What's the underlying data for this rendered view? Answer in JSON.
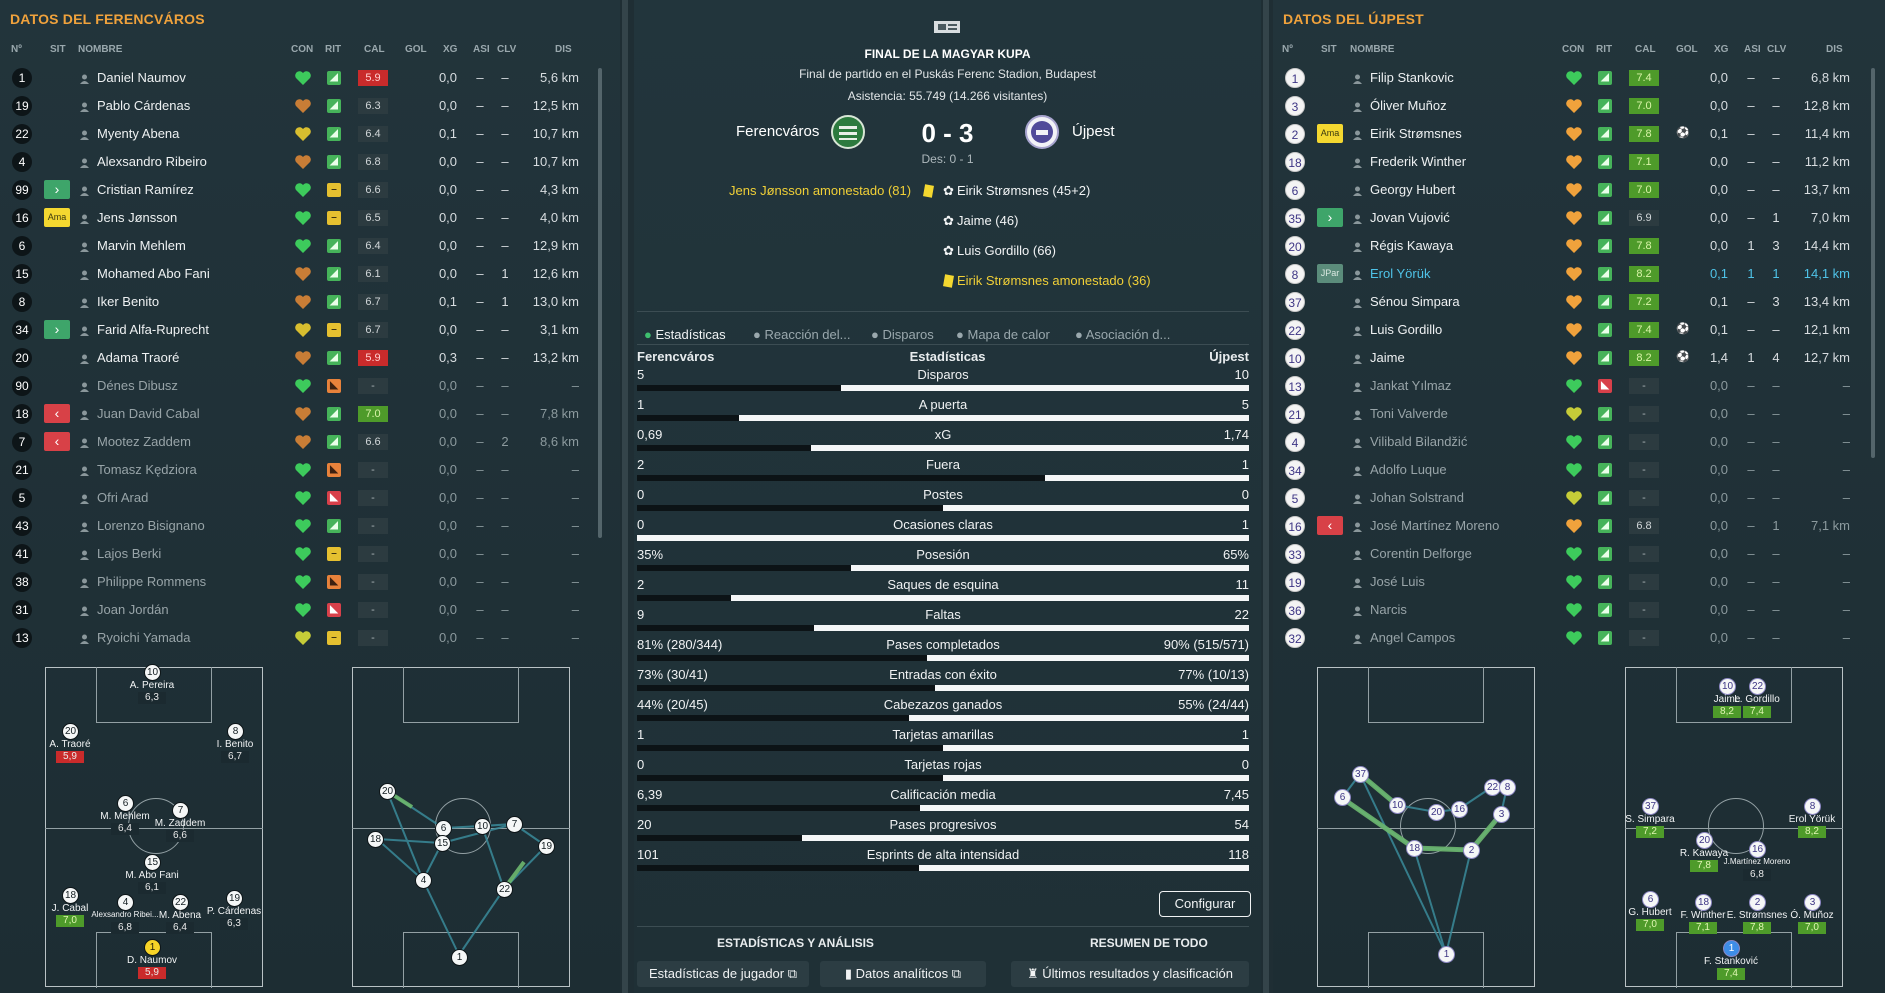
{
  "left": {
    "title": "DATOS DEL FERENCVÁROS",
    "headers": {
      "num": "Nº",
      "sit": "SIT",
      "name": "NOMBRE",
      "con": "CON",
      "rit": "RIT",
      "cal": "CAL",
      "gol": "GOL",
      "xg": "XG",
      "asi": "ASI",
      "clv": "CLV",
      "dis": "DIS"
    },
    "players": [
      {
        "num": "1",
        "name": "Daniel Naumov",
        "cal": "5.9",
        "xg": "0,0",
        "asi": "–",
        "clv": "–",
        "dis": "5,6 km"
      },
      {
        "num": "19",
        "name": "Pablo Cárdenas",
        "cal": "6.3",
        "xg": "0,0",
        "asi": "–",
        "clv": "–",
        "dis": "12,5 km"
      },
      {
        "num": "22",
        "name": "Myenty Abena",
        "cal": "6.4",
        "xg": "0,1",
        "asi": "–",
        "clv": "–",
        "dis": "10,7 km"
      },
      {
        "num": "4",
        "name": "Alexsandro Ribeiro",
        "cal": "6.8",
        "xg": "0,0",
        "asi": "–",
        "clv": "–",
        "dis": "10,7 km"
      },
      {
        "num": "99",
        "sit": "›",
        "name": "Cristian Ramírez",
        "cal": "6.6",
        "xg": "0,0",
        "asi": "–",
        "clv": "–",
        "dis": "4,3 km"
      },
      {
        "num": "16",
        "sit": "Ama",
        "name": "Jens Jønsson",
        "cal": "6.5",
        "xg": "0,0",
        "asi": "–",
        "clv": "–",
        "dis": "4,0 km"
      },
      {
        "num": "6",
        "name": "Marvin Mehlem",
        "cal": "6.4",
        "xg": "0,0",
        "asi": "–",
        "clv": "–",
        "dis": "12,9 km"
      },
      {
        "num": "15",
        "name": "Mohamed Abo Fani",
        "cal": "6.1",
        "xg": "0,0",
        "asi": "–",
        "clv": "1",
        "dis": "12,6 km"
      },
      {
        "num": "8",
        "name": "Iker Benito",
        "cal": "6.7",
        "xg": "0,1",
        "asi": "–",
        "clv": "1",
        "dis": "13,0 km"
      },
      {
        "num": "34",
        "sit": "›",
        "name": "Farid Alfa-Ruprecht",
        "cal": "6.7",
        "xg": "0,0",
        "asi": "–",
        "clv": "–",
        "dis": "3,1 km"
      },
      {
        "num": "20",
        "name": "Adama Traoré",
        "cal": "5.9",
        "xg": "0,3",
        "asi": "–",
        "clv": "–",
        "dis": "13,2 km"
      },
      {
        "num": "90",
        "name": "Dénes Dibusz",
        "cal": "-",
        "xg": "0,0",
        "asi": "–",
        "clv": "–",
        "dis": "–"
      },
      {
        "num": "18",
        "sit": "‹",
        "name": "Juan David Cabal",
        "cal": "7.0",
        "xg": "0,0",
        "asi": "–",
        "clv": "–",
        "dis": "7,8 km"
      },
      {
        "num": "7",
        "sit": "‹",
        "name": "Mootez Zaddem",
        "cal": "6.6",
        "xg": "0,0",
        "asi": "–",
        "clv": "2",
        "dis": "8,6 km"
      },
      {
        "num": "21",
        "name": "Tomasz Kędziora",
        "cal": "-",
        "xg": "0,0",
        "asi": "–",
        "clv": "–",
        "dis": "–"
      },
      {
        "num": "5",
        "name": "Ofri Arad",
        "cal": "-",
        "xg": "0,0",
        "asi": "–",
        "clv": "–",
        "dis": "–"
      },
      {
        "num": "43",
        "name": "Lorenzo Bisignano",
        "cal": "-",
        "xg": "0,0",
        "asi": "–",
        "clv": "–",
        "dis": "–"
      },
      {
        "num": "41",
        "name": "Lajos Berki",
        "cal": "-",
        "xg": "0,0",
        "asi": "–",
        "clv": "–",
        "dis": "–"
      },
      {
        "num": "38",
        "name": "Philippe Rommens",
        "cal": "-",
        "xg": "0,0",
        "asi": "–",
        "clv": "–",
        "dis": "–"
      },
      {
        "num": "31",
        "name": "Joan Jordán",
        "cal": "-",
        "xg": "0,0",
        "asi": "–",
        "clv": "–",
        "dis": "–"
      },
      {
        "num": "13",
        "name": "Ryoichi Yamada",
        "cal": "-",
        "xg": "0,0",
        "asi": "–",
        "clv": "–",
        "dis": "–"
      }
    ],
    "pitch": [
      {
        "num": "10",
        "name": "A. Pereira",
        "rate": "6,3"
      },
      {
        "num": "20",
        "name": "A. Traoré",
        "rate": "5,9"
      },
      {
        "num": "8",
        "name": "I. Benito",
        "rate": "6,7"
      },
      {
        "num": "6",
        "name": "M. Mehlem",
        "rate": "6,4"
      },
      {
        "num": "7",
        "name": "M. Zaddem",
        "rate": "6,6"
      },
      {
        "num": "15",
        "name": "M. Abo Fani",
        "rate": "6,1"
      },
      {
        "num": "18",
        "name": "J. Cabal",
        "rate": "7,0"
      },
      {
        "num": "4",
        "name": "Alexsandro Ribei...",
        "rate": "6,8"
      },
      {
        "num": "22",
        "name": "M. Abena",
        "rate": "6,4"
      },
      {
        "num": "19",
        "name": "P. Cárdenas",
        "rate": "6,3"
      },
      {
        "num": "1",
        "name": "D. Naumov",
        "rate": "5,9"
      }
    ]
  },
  "right": {
    "title": "DATOS DEL ÚJPEST",
    "players": [
      {
        "num": "1",
        "name": "Filip Stankovic",
        "cal": "7.4",
        "gol": "",
        "xg": "0,0",
        "asi": "–",
        "clv": "–",
        "dis": "6,8 km"
      },
      {
        "num": "3",
        "name": "Óliver Muñoz",
        "cal": "7.0",
        "gol": "",
        "xg": "0,0",
        "asi": "–",
        "clv": "–",
        "dis": "12,8 km"
      },
      {
        "num": "2",
        "sit": "Ama",
        "name": "Eirik Strømsnes",
        "cal": "7.8",
        "gol": "⚽",
        "xg": "0,1",
        "asi": "–",
        "clv": "–",
        "dis": "11,4 km"
      },
      {
        "num": "18",
        "name": "Frederik Winther",
        "cal": "7.1",
        "gol": "",
        "xg": "0,0",
        "asi": "–",
        "clv": "–",
        "dis": "11,2 km"
      },
      {
        "num": "6",
        "name": "Georgy Hubert",
        "cal": "7.0",
        "gol": "",
        "xg": "0,0",
        "asi": "–",
        "clv": "–",
        "dis": "13,7 km"
      },
      {
        "num": "35",
        "sit": "›",
        "name": "Jovan Vujović",
        "cal": "6.9",
        "gol": "",
        "xg": "0,0",
        "asi": "–",
        "clv": "1",
        "dis": "7,0 km"
      },
      {
        "num": "20",
        "name": "Régis Kawaya",
        "cal": "7.8",
        "gol": "",
        "xg": "0,0",
        "asi": "1",
        "clv": "3",
        "dis": "14,4 km"
      },
      {
        "num": "8",
        "sit": "JPar",
        "name": "Erol Yörük",
        "cal": "8.2",
        "gol": "",
        "xg": "0,1",
        "asi": "1",
        "clv": "1",
        "dis": "14,1 km"
      },
      {
        "num": "37",
        "name": "Sénou Simpara",
        "cal": "7.2",
        "gol": "",
        "xg": "0,1",
        "asi": "–",
        "clv": "3",
        "dis": "13,4 km"
      },
      {
        "num": "22",
        "name": "Luis Gordillo",
        "cal": "7.4",
        "gol": "⚽",
        "xg": "0,1",
        "asi": "–",
        "clv": "–",
        "dis": "12,1 km"
      },
      {
        "num": "10",
        "name": "Jaime",
        "cal": "8.2",
        "gol": "⚽",
        "xg": "1,4",
        "asi": "1",
        "clv": "4",
        "dis": "12,7 km"
      },
      {
        "num": "13",
        "name": "Jankat Yılmaz",
        "cal": "-",
        "gol": "",
        "xg": "0,0",
        "asi": "–",
        "clv": "–",
        "dis": "–"
      },
      {
        "num": "21",
        "name": "Toni Valverde",
        "cal": "-",
        "gol": "",
        "xg": "0,0",
        "asi": "–",
        "clv": "–",
        "dis": "–"
      },
      {
        "num": "4",
        "name": "Vilibald Bilandžić",
        "cal": "-",
        "gol": "",
        "xg": "0,0",
        "asi": "–",
        "clv": "–",
        "dis": "–"
      },
      {
        "num": "34",
        "name": "Adolfo Luque",
        "cal": "-",
        "gol": "",
        "xg": "0,0",
        "asi": "–",
        "clv": "–",
        "dis": "–"
      },
      {
        "num": "5",
        "name": "Johan Solstrand",
        "cal": "-",
        "gol": "",
        "xg": "0,0",
        "asi": "–",
        "clv": "–",
        "dis": "–"
      },
      {
        "num": "16",
        "sit": "‹",
        "name": "José Martínez Moreno",
        "cal": "6.8",
        "gol": "",
        "xg": "0,0",
        "asi": "–",
        "clv": "1",
        "dis": "7,1 km"
      },
      {
        "num": "33",
        "name": "Corentin Delforge",
        "cal": "-",
        "gol": "",
        "xg": "0,0",
        "asi": "–",
        "clv": "–",
        "dis": "–"
      },
      {
        "num": "19",
        "name": "José Luis",
        "cal": "-",
        "gol": "",
        "xg": "0,0",
        "asi": "–",
        "clv": "–",
        "dis": "–"
      },
      {
        "num": "36",
        "name": "Narcis",
        "cal": "-",
        "gol": "",
        "xg": "0,0",
        "asi": "–",
        "clv": "–",
        "dis": "–"
      },
      {
        "num": "32",
        "name": "Angel Campos",
        "cal": "-",
        "gol": "",
        "xg": "0,0",
        "asi": "–",
        "clv": "–",
        "dis": "–"
      }
    ],
    "pitch": [
      {
        "num": "10",
        "name": "Jaime",
        "rate": "8,2"
      },
      {
        "num": "22",
        "name": "L. Gordillo",
        "rate": "7,4"
      },
      {
        "num": "37",
        "name": "S. Simpara",
        "rate": "7,2"
      },
      {
        "num": "8",
        "name": "Erol Yörük",
        "rate": "8,2"
      },
      {
        "num": "20",
        "name": "R. Kawaya",
        "rate": "7,8"
      },
      {
        "num": "16",
        "name": "J.Martínez Moreno",
        "rate": "6,8"
      },
      {
        "num": "6",
        "name": "G. Hubert",
        "rate": "7,0"
      },
      {
        "num": "18",
        "name": "F. Winther",
        "rate": "7,1"
      },
      {
        "num": "2",
        "name": "E. Strømsnes",
        "rate": "7,8"
      },
      {
        "num": "3",
        "name": "Ó. Muñoz",
        "rate": "7,0"
      },
      {
        "num": "1",
        "name": "F. Stanković",
        "rate": "7,4"
      }
    ]
  },
  "center": {
    "title": "FINAL DE LA MAGYAR KUPA",
    "subtitle": "Final de partido en el Puskás Ferenc Stadion, Budapest",
    "attendance": "Asistencia: 55.749 (14.266 visitantes)",
    "home": "Ferencváros",
    "away": "Újpest",
    "score": "0 - 3",
    "ht": "Des: 0 - 1",
    "home_events": [
      "Jens Jønsson amonestado (81)"
    ],
    "away_events": [
      "Eirik Strømsnes (45+2)",
      "Jaime (46)",
      "Luis Gordillo (66)",
      "Eirik Strømsnes amonestado (36)"
    ],
    "tabs": [
      "Estadísticas",
      "Reacción del...",
      "Disparos",
      "Mapa de calor",
      "Asociación d..."
    ],
    "stats_header": {
      "home": "Ferencváros",
      "mid": "Estadísticas",
      "away": "Újpest"
    },
    "stats": [
      {
        "label": "Disparos",
        "home": "5",
        "away": "10",
        "home_share": 0.333
      },
      {
        "label": "A puerta",
        "home": "1",
        "away": "5",
        "home_share": 0.167
      },
      {
        "label": "xG",
        "home": "0,69",
        "away": "1,74",
        "home_share": 0.284
      },
      {
        "label": "Fuera",
        "home": "2",
        "away": "1",
        "home_share": 0.667
      },
      {
        "label": "Postes",
        "home": "0",
        "away": "0",
        "home_share": 0.5
      },
      {
        "label": "Ocasiones claras",
        "home": "0",
        "away": "1",
        "home_share": 0.0
      },
      {
        "label": "Posesión",
        "home": "35%",
        "away": "65%",
        "home_share": 0.35
      },
      {
        "label": "Saques de esquina",
        "home": "2",
        "away": "11",
        "home_share": 0.154
      },
      {
        "label": "Faltas",
        "home": "9",
        "away": "22",
        "home_share": 0.29
      },
      {
        "label": "Pases completados",
        "home": "81% (280/344)",
        "away": "90% (515/571)",
        "home_share": 0.474
      },
      {
        "label": "Entradas con éxito",
        "home": "73% (30/41)",
        "away": "77% (10/13)",
        "home_share": 0.487
      },
      {
        "label": "Cabezazos ganados",
        "home": "44% (20/45)",
        "away": "55% (24/44)",
        "home_share": 0.444
      },
      {
        "label": "Tarjetas amarillas",
        "home": "1",
        "away": "1",
        "home_share": 0.5
      },
      {
        "label": "Tarjetas rojas",
        "home": "0",
        "away": "0",
        "home_share": 0.5
      },
      {
        "label": "Calificación media",
        "home": "6,39",
        "away": "7,45",
        "home_share": 0.462
      },
      {
        "label": "Pases progresivos",
        "home": "20",
        "away": "54",
        "home_share": 0.27
      },
      {
        "label": "Esprints de alta intensidad",
        "home": "101",
        "away": "118",
        "home_share": 0.461
      }
    ],
    "configure": "Configurar",
    "footer_heads": [
      "ESTADÍSTICAS Y ANÁLISIS",
      "RESUMEN DE TODO"
    ],
    "footer_buttons": [
      "Estadísticas de jugador",
      "Datos analíticos",
      "Últimos resultados y clasificación"
    ]
  }
}
